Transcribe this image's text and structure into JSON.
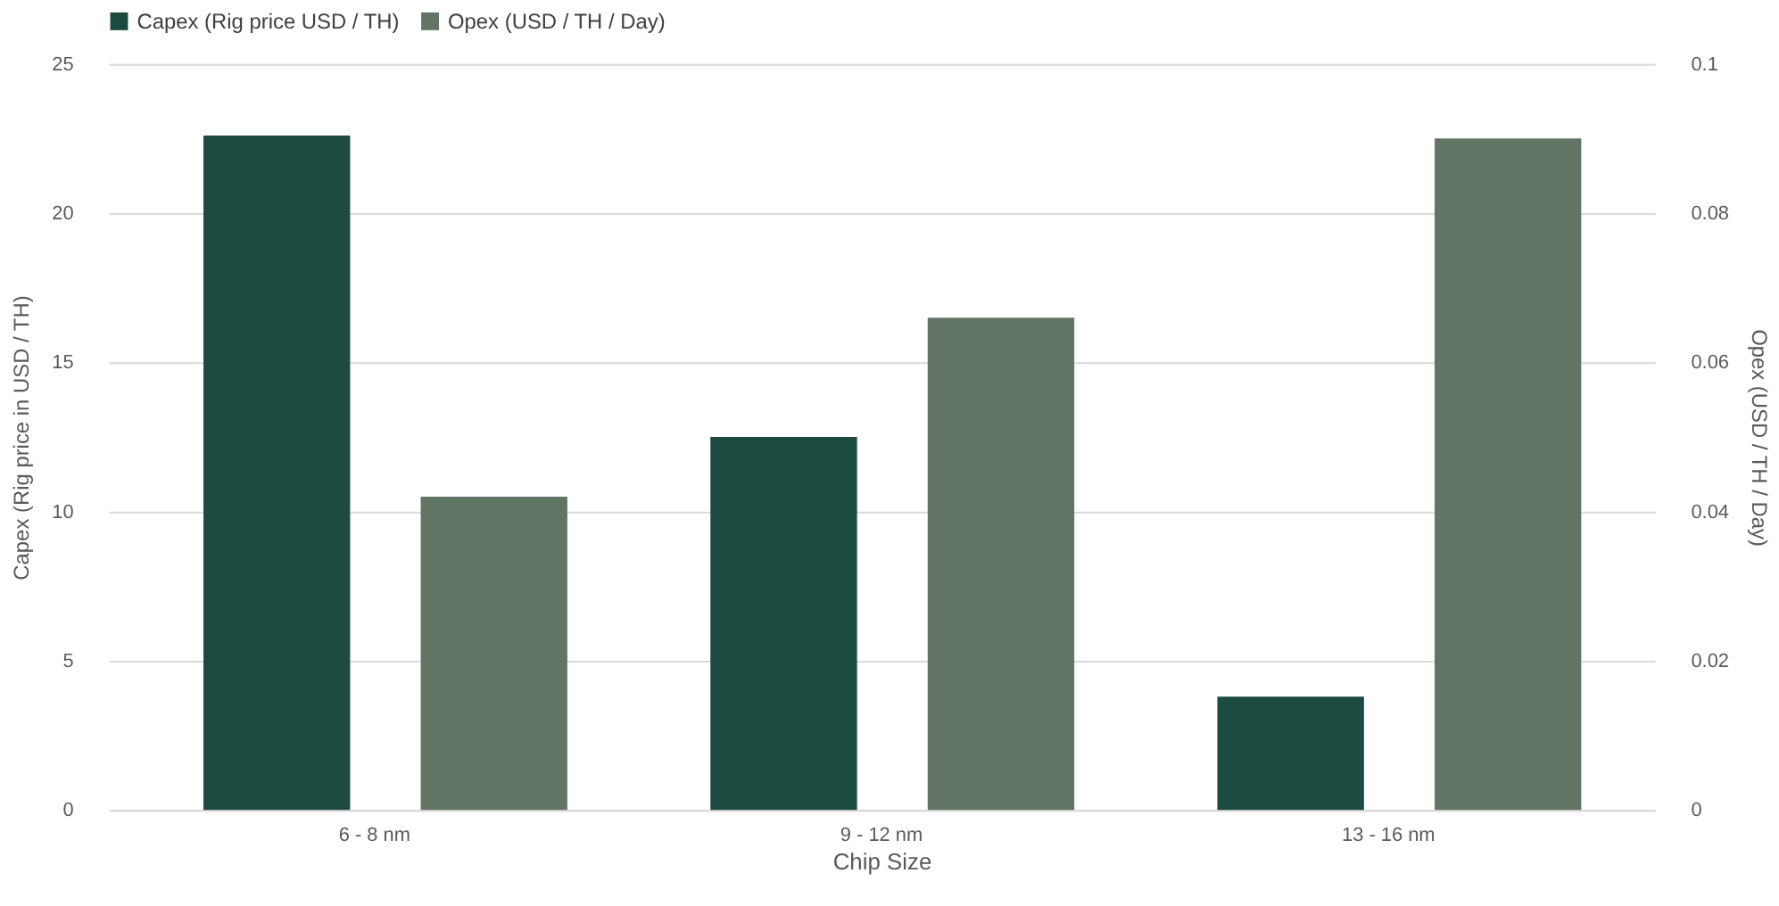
{
  "chart_data": {
    "type": "bar",
    "xlabel": "Chip Size",
    "ylabel": "Capex (Rig price in USD / TH)",
    "y2label": "Opex (USD / TH / Day)",
    "categories": [
      "6 - 8 nm",
      "9 - 12 nm",
      "13 - 16 nm"
    ],
    "series": [
      {
        "name": "Capex (Rig price USD / TH)",
        "color": "#1b4a40",
        "values": [
          22.6,
          12.5,
          3.8
        ]
      },
      {
        "name": "Opex (USD / TH / Day)",
        "color": "#627565",
        "values": [
          0.042,
          0.066,
          0.09
        ],
        "axis": "y2"
      }
    ],
    "ylim": [
      0,
      25
    ],
    "yticks": [
      0,
      5,
      10,
      15,
      20,
      25
    ],
    "y2lim": [
      0,
      0.1
    ],
    "y2ticks": [
      0,
      0.02,
      0.04,
      0.06,
      0.08,
      0.1
    ],
    "grid": "y",
    "legend": "top"
  }
}
